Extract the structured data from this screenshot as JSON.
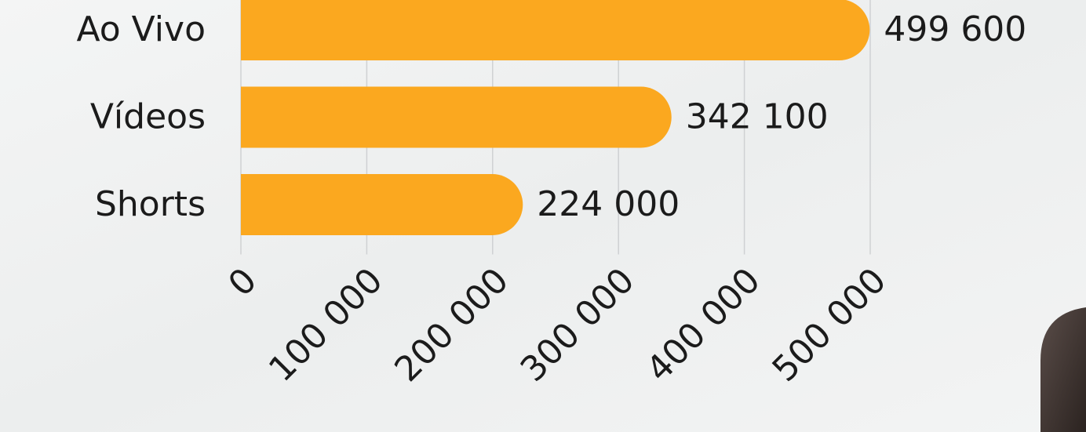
{
  "chart_data": {
    "type": "bar",
    "orientation": "horizontal",
    "categories": [
      "Ao Vivo",
      "Vídeos",
      "Shorts"
    ],
    "values": [
      499600,
      342100,
      224000
    ],
    "value_labels": [
      "499 600",
      "342 100",
      "224 000"
    ],
    "color": "#fba81f",
    "xlim": [
      0,
      500000
    ],
    "xticks": [
      0,
      {
        "value": 100000,
        "label": "100 000"
      },
      {
        "value": 200000,
        "label": "200 000"
      },
      {
        "value": 300000,
        "label": "300 000"
      },
      {
        "value": 400000,
        "label": "400 000"
      },
      {
        "value": 500000,
        "label": "500 000"
      }
    ],
    "grid": true
  }
}
